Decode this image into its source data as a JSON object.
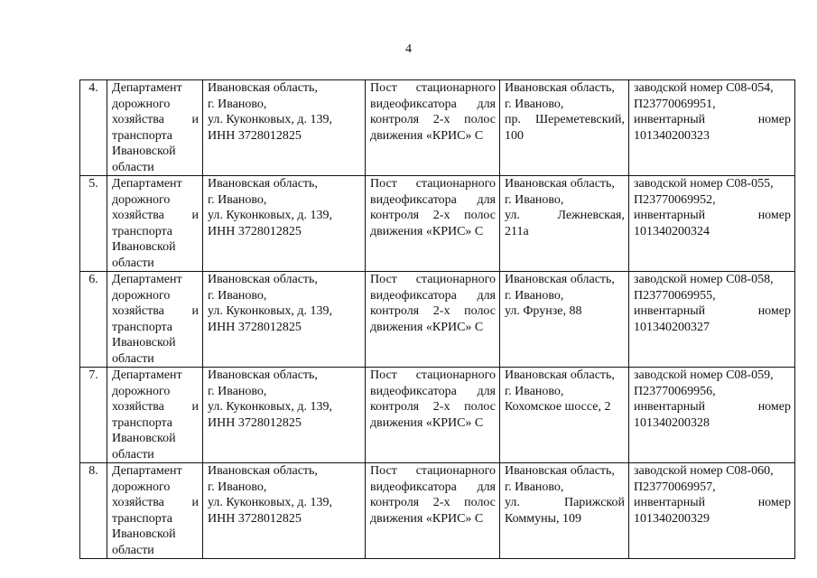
{
  "page_number": "4",
  "rows": [
    {
      "num": "4.",
      "owner": [
        "Департамент",
        "дорожного",
        "хозяйства и",
        "транспорта",
        "Ивановской",
        "области"
      ],
      "owner_address": [
        "Ивановская область,",
        "г. Иваново,",
        "ул. Куконковых, д. 139,",
        "ИНН 3728012825"
      ],
      "object": [
        "Пост стационарного",
        "видеофиксатора для",
        "контроля 2-х полос",
        "движения «КРИС» С"
      ],
      "location": [
        "Ивановская область,",
        "г. Иваново,",
        "пр. Шереметевский,",
        "100"
      ],
      "details": [
        "заводской номер С08-054,",
        "П23770069951,",
        "инвентарный номер",
        "101340200323"
      ]
    },
    {
      "num": "5.",
      "owner": [
        "Департамент",
        "дорожного",
        "хозяйства и",
        "транспорта",
        "Ивановской",
        "области"
      ],
      "owner_address": [
        "Ивановская область,",
        "г. Иваново,",
        "ул. Куконковых, д. 139,",
        "ИНН 3728012825"
      ],
      "object": [
        "Пост стационарного",
        "видеофиксатора для",
        "контроля 2-х полос",
        "движения «КРИС» С"
      ],
      "location": [
        "Ивановская область,",
        "г. Иваново,",
        "ул. Лежневская,",
        "211а"
      ],
      "details": [
        "заводской номер С08-055,",
        "П23770069952,",
        "инвентарный номер",
        "101340200324"
      ]
    },
    {
      "num": "6.",
      "owner": [
        "Департамент",
        "дорожного",
        "хозяйства и",
        "транспорта",
        "Ивановской",
        "области"
      ],
      "owner_address": [
        "Ивановская область,",
        "г. Иваново,",
        "ул. Куконковых, д. 139,",
        "ИНН 3728012825"
      ],
      "object": [
        "Пост стационарного",
        "видеофиксатора для",
        "контроля 2-х полос",
        "движения «КРИС» С"
      ],
      "location": [
        "Ивановская область,",
        "г. Иваново,",
        "ул. Фрунзе, 88"
      ],
      "details": [
        "заводской номер С08-058,",
        "П23770069955,",
        "инвентарный номер",
        "101340200327"
      ]
    },
    {
      "num": "7.",
      "owner": [
        "Департамент",
        "дорожного",
        "хозяйства и",
        "транспорта",
        "Ивановской",
        "области"
      ],
      "owner_address": [
        "Ивановская область,",
        "г. Иваново,",
        "ул. Куконковых, д. 139,",
        "ИНН 3728012825"
      ],
      "object": [
        "Пост стационарного",
        "видеофиксатора для",
        "контроля 2-х полос",
        "движения «КРИС» С"
      ],
      "location": [
        "Ивановская область,",
        "г. Иваново,",
        "Кохомское шоссе, 2"
      ],
      "details": [
        "заводской номер С08-059,",
        "П23770069956,",
        "инвентарный номер",
        "101340200328"
      ]
    },
    {
      "num": "8.",
      "owner": [
        "Департамент",
        "дорожного",
        "хозяйства и",
        "транспорта",
        "Ивановской",
        "области"
      ],
      "owner_address": [
        "Ивановская область,",
        "г. Иваново,",
        "ул. Куконковых, д. 139,",
        "ИНН 3728012825"
      ],
      "object": [
        "Пост стационарного",
        "видеофиксатора для",
        "контроля 2-х полос",
        "движения «КРИС» С"
      ],
      "location": [
        "Ивановская область,",
        "г. Иваново,",
        "ул. Парижской",
        "Коммуны, 109"
      ],
      "details": [
        "заводской номер С08-060,",
        "П23770069957,",
        "инвентарный номер",
        "101340200329"
      ]
    }
  ]
}
